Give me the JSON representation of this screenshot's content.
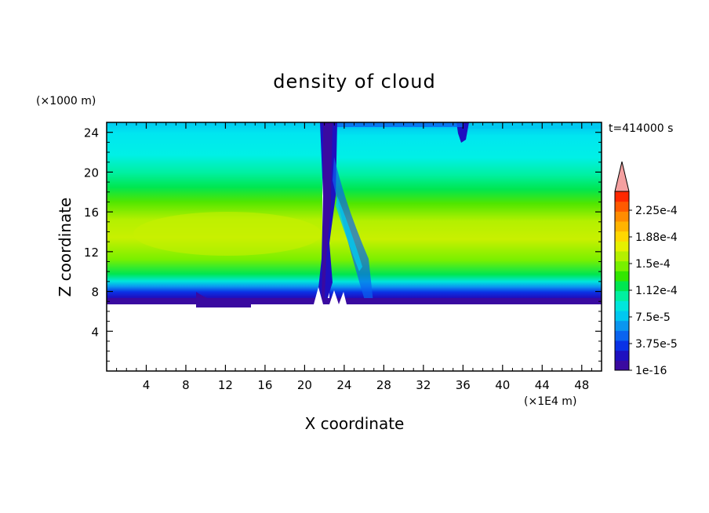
{
  "chart_data": {
    "type": "heatmap",
    "title": "density of cloud",
    "xlabel": "X coordinate",
    "ylabel": "Z coordinate",
    "x_unit": "(×1E4 m)",
    "y_unit": "(×1000 m)",
    "time_label": "t=414000 s",
    "xlim": [
      0,
      50
    ],
    "ylim": [
      0,
      25
    ],
    "x_ticks": [
      "4",
      "8",
      "12",
      "16",
      "20",
      "24",
      "28",
      "32",
      "36",
      "40",
      "44",
      "48"
    ],
    "y_ticks": [
      "4",
      "8",
      "12",
      "16",
      "20",
      "24"
    ],
    "colorbar": {
      "labels": [
        "2.25e-4",
        "1.88e-4",
        "1.5e-4",
        "1.12e-4",
        "7.5e-5",
        "3.75e-5",
        "1e-16"
      ],
      "colors": [
        "#3a0aa0",
        "#1e10c0",
        "#0a32e6",
        "#0a64f0",
        "#0a96f0",
        "#00c8f0",
        "#00e6dc",
        "#00f0a0",
        "#00e650",
        "#32e600",
        "#78f000",
        "#b4f000",
        "#e6f000",
        "#ffd700",
        "#ffb400",
        "#ff8c00",
        "#ff5a00",
        "#ff2800"
      ],
      "overflow_color": "#f4a0a0"
    }
  }
}
